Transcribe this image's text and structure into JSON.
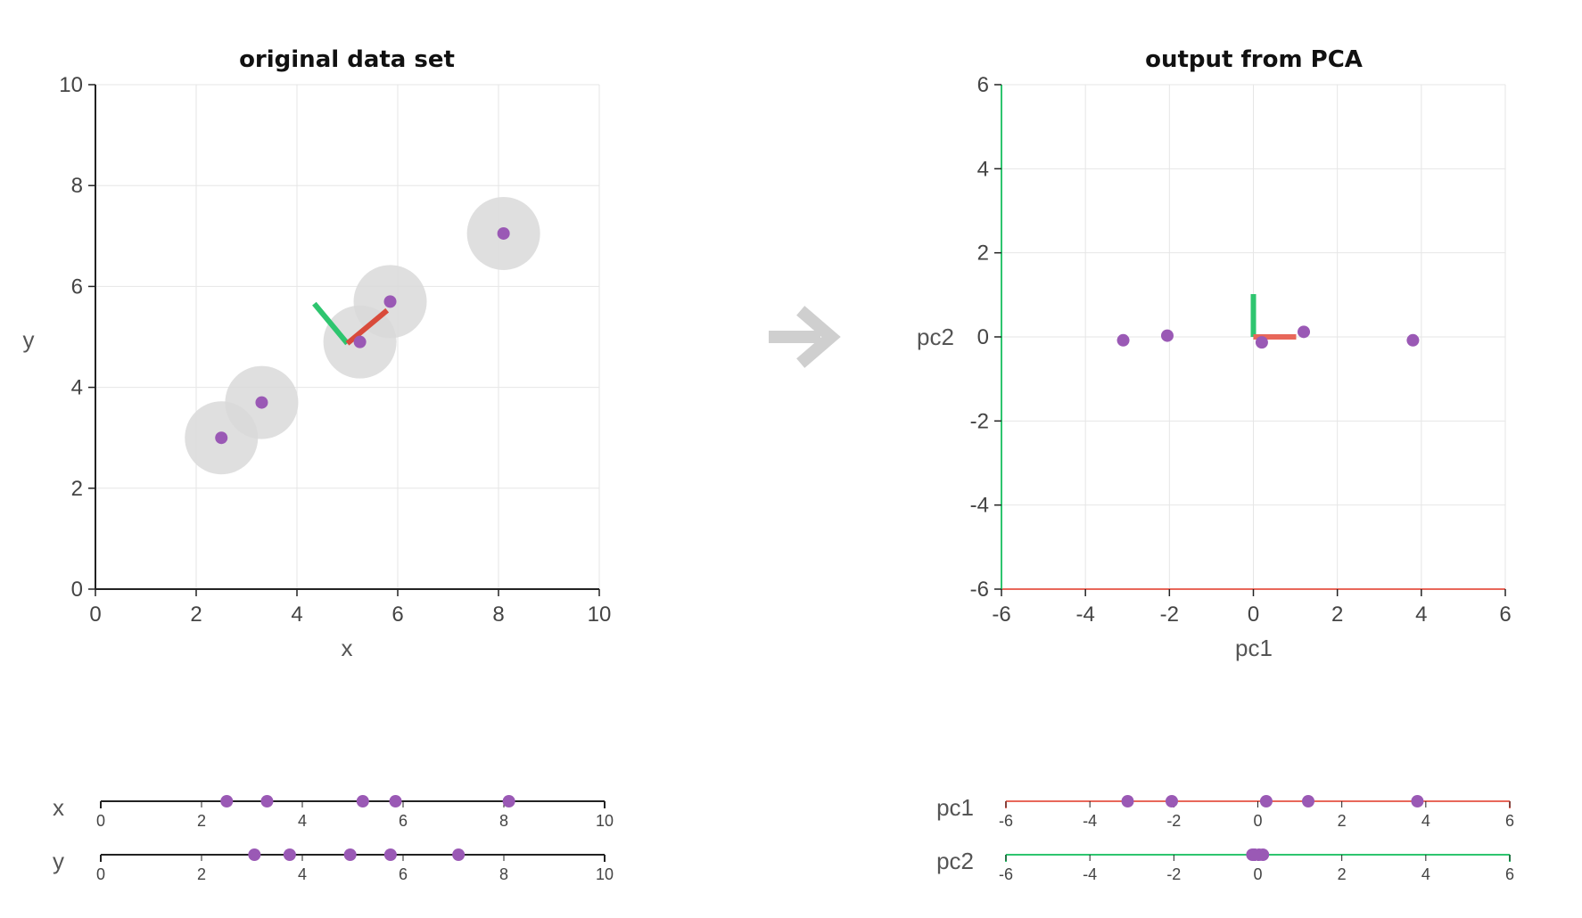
{
  "chart_data": [
    {
      "id": "original",
      "type": "scatter",
      "title": "original data set",
      "xlabel": "x",
      "ylabel": "y",
      "xlim": [
        0,
        10
      ],
      "ylim": [
        0,
        10
      ],
      "xticks": [
        "0",
        "2",
        "4",
        "6",
        "8",
        "10"
      ],
      "yticks": [
        "0",
        "2",
        "4",
        "6",
        "8",
        "10"
      ],
      "grid": true,
      "points": [
        {
          "x": 2.5,
          "y": 3.0
        },
        {
          "x": 3.3,
          "y": 3.7
        },
        {
          "x": 5.25,
          "y": 4.9
        },
        {
          "x": 5.85,
          "y": 5.7
        },
        {
          "x": 8.1,
          "y": 7.05
        }
      ],
      "mean": {
        "x": 5.0,
        "y": 4.87
      },
      "pc1_direction": {
        "dx": 0.77,
        "dy": 0.64
      },
      "pc2_direction": {
        "dx": -0.64,
        "dy": 0.77
      },
      "pc1_color": "#d94b3b",
      "pc2_color": "#2ec56f",
      "point_color": "#9a59b5",
      "halo_color": "#d9d9d9"
    },
    {
      "id": "pca",
      "type": "scatter",
      "title": "output from PCA",
      "xlabel": "pc1",
      "ylabel": "pc2",
      "xlim": [
        -6,
        6
      ],
      "ylim": [
        -6,
        6
      ],
      "xticks": [
        "-6",
        "-4",
        "-2",
        "0",
        "2",
        "4",
        "6"
      ],
      "yticks": [
        "-6",
        "-4",
        "-2",
        "0",
        "2",
        "4",
        "6"
      ],
      "grid": true,
      "points": [
        {
          "x": -3.1,
          "y": -0.08
        },
        {
          "x": -2.05,
          "y": 0.03
        },
        {
          "x": 0.2,
          "y": -0.13
        },
        {
          "x": 1.2,
          "y": 0.12
        },
        {
          "x": 3.8,
          "y": -0.08
        }
      ],
      "pc1_color": "#e8675a",
      "pc2_color": "#2ec56f",
      "point_color": "#9a59b5"
    },
    {
      "id": "strips-original",
      "type": "scatter",
      "rows": [
        {
          "label": "x",
          "values": [
            2.5,
            3.3,
            5.2,
            5.85,
            8.1
          ]
        },
        {
          "label": "y",
          "values": [
            3.05,
            3.75,
            4.95,
            5.75,
            7.1
          ]
        }
      ],
      "xlim": [
        0,
        10
      ],
      "ticks": [
        "0",
        "2",
        "4",
        "6",
        "8",
        "10"
      ]
    },
    {
      "id": "strips-pca",
      "type": "scatter",
      "rows": [
        {
          "label": "pc1",
          "values": [
            -3.1,
            -2.05,
            0.2,
            1.2,
            3.8
          ],
          "color": "#e8675a"
        },
        {
          "label": "pc2",
          "values": [
            -0.13,
            -0.08,
            0.03,
            0.12,
            -0.08
          ],
          "color": "#2ec56f"
        }
      ],
      "xlim": [
        -6,
        6
      ],
      "ticks": [
        "-6",
        "-4",
        "-2",
        "0",
        "2",
        "4",
        "6"
      ]
    }
  ],
  "arrow_color": "#cfcfcf"
}
